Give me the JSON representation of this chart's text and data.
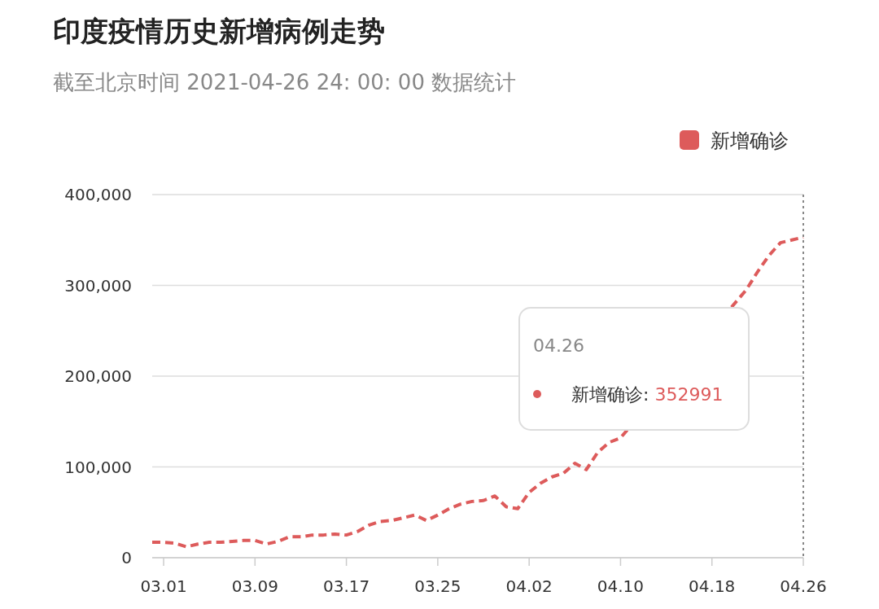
{
  "chart_data": {
    "type": "line",
    "title": "印度疫情历史新增病例走势",
    "subtitle": "截至北京时间 2021-04-26 24: 00: 00 数据统计",
    "x": [
      "2021-02-28",
      "2021-03-01",
      "2021-03-02",
      "2021-03-03",
      "2021-03-04",
      "2021-03-05",
      "2021-03-06",
      "2021-03-07",
      "2021-03-08",
      "2021-03-09",
      "2021-03-10",
      "2021-03-11",
      "2021-03-12",
      "2021-03-13",
      "2021-03-14",
      "2021-03-15",
      "2021-03-16",
      "2021-03-17",
      "2021-03-18",
      "2021-03-19",
      "2021-03-20",
      "2021-03-21",
      "2021-03-22",
      "2021-03-23",
      "2021-03-24",
      "2021-03-25",
      "2021-03-26",
      "2021-03-27",
      "2021-03-28",
      "2021-03-29",
      "2021-03-30",
      "2021-03-31",
      "2021-04-01",
      "2021-04-02",
      "2021-04-03",
      "2021-04-04",
      "2021-04-05",
      "2021-04-06",
      "2021-04-07",
      "2021-04-08",
      "2021-04-09",
      "2021-04-10",
      "2021-04-21",
      "2021-04-22",
      "2021-04-23",
      "2021-04-24",
      "2021-04-25",
      "2021-04-26"
    ],
    "series": [
      {
        "name": "新增确诊",
        "color": "#dd5b5b",
        "values": [
          17000,
          17000,
          16000,
          12000,
          15000,
          17000,
          17000,
          18000,
          19000,
          19000,
          15000,
          18000,
          23000,
          23000,
          25000,
          25000,
          26000,
          25000,
          29000,
          36000,
          40000,
          41000,
          44000,
          47000,
          41000,
          47000,
          54000,
          59000,
          62000,
          63000,
          68000,
          56000,
          54000,
          72000,
          82000,
          89000,
          93000,
          104000,
          97000,
          116000,
          127000,
          132000,
          295000,
          315000,
          333000,
          347000,
          350000,
          352991
        ]
      }
    ],
    "xlim": [
      "2021-02-28",
      "2021-04-26"
    ],
    "xticks": [
      {
        "value": "2021-03-01",
        "label": "03.01"
      },
      {
        "value": "2021-03-09",
        "label": "03.09"
      },
      {
        "value": "2021-03-17",
        "label": "03.17"
      },
      {
        "value": "2021-03-25",
        "label": "03.25"
      },
      {
        "value": "2021-04-02",
        "label": "04.02"
      },
      {
        "value": "2021-04-10",
        "label": "04.10"
      },
      {
        "value": "2021-04-18",
        "label": "04.18"
      },
      {
        "value": "2021-04-26",
        "label": "04.26"
      }
    ],
    "ylim": [
      0,
      400000
    ],
    "yticks": [
      0,
      {
        "value": 100000,
        "label": "100,000"
      },
      {
        "value": 200000,
        "label": "200,000"
      },
      {
        "value": 300000,
        "label": "300,000"
      },
      {
        "value": 400000,
        "label": "400,000"
      }
    ],
    "grid": "y",
    "legend": "top right",
    "marker": "none",
    "line_style": "dashed",
    "ref_lines": [
      {
        "axis": "x",
        "value": "2021-04-26",
        "color": "#888888",
        "line_style": "dotted"
      }
    ],
    "annotations": [
      "04.26",
      "新增确诊: 352991"
    ]
  }
}
